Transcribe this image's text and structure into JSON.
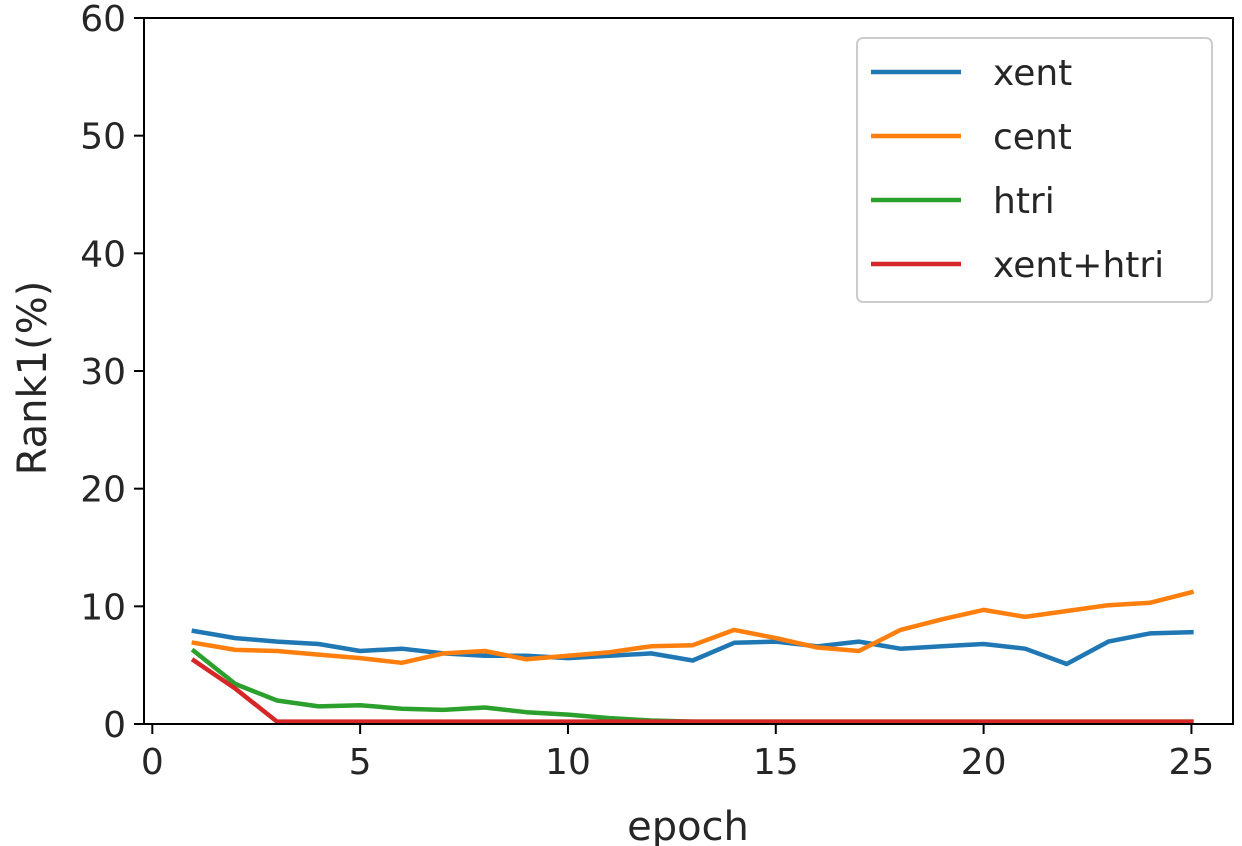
{
  "chart_data": {
    "type": "line",
    "xlabel": "epoch",
    "ylabel": "Rank1(%)",
    "xlim": [
      -0.2,
      26.0
    ],
    "ylim": [
      0,
      60
    ],
    "xticks": [
      0,
      5,
      10,
      15,
      20,
      25
    ],
    "yticks": [
      0,
      10,
      20,
      30,
      40,
      50,
      60
    ],
    "grid": false,
    "legend_position": "top-right",
    "x": [
      1,
      2,
      3,
      4,
      5,
      6,
      7,
      8,
      9,
      10,
      11,
      12,
      13,
      14,
      15,
      16,
      17,
      18,
      19,
      20,
      21,
      22,
      23,
      24,
      25
    ],
    "series": [
      {
        "name": "xent",
        "color": "#1f77b4",
        "values": [
          7.9,
          7.3,
          7.0,
          6.8,
          6.2,
          6.4,
          6.0,
          5.8,
          5.8,
          5.6,
          5.8,
          6.0,
          5.4,
          6.9,
          7.0,
          6.6,
          7.0,
          6.4,
          6.6,
          6.8,
          6.4,
          5.1,
          7.0,
          7.7,
          7.8
        ]
      },
      {
        "name": "cent",
        "color": "#ff7f0e",
        "values": [
          6.9,
          6.3,
          6.2,
          5.9,
          5.6,
          5.2,
          6.0,
          6.2,
          5.5,
          5.8,
          6.1,
          6.6,
          6.7,
          8.0,
          7.3,
          6.5,
          6.2,
          8.0,
          8.9,
          9.7,
          9.1,
          9.6,
          10.1,
          10.3,
          11.2
        ]
      },
      {
        "name": "htri",
        "color": "#2ca02c",
        "values": [
          6.2,
          3.4,
          2.0,
          1.5,
          1.6,
          1.3,
          1.2,
          1.4,
          1.0,
          0.8,
          0.5,
          0.3,
          0.2,
          0.2,
          0.2,
          0.2,
          0.2,
          0.2,
          0.2,
          0.2,
          0.2,
          0.2,
          0.2,
          0.2,
          0.2
        ]
      },
      {
        "name": "xent+htri",
        "color": "#d62728",
        "values": [
          5.4,
          3.0,
          0.2,
          0.2,
          0.2,
          0.2,
          0.2,
          0.2,
          0.2,
          0.2,
          0.2,
          0.2,
          0.2,
          0.2,
          0.2,
          0.2,
          0.2,
          0.2,
          0.2,
          0.2,
          0.2,
          0.2,
          0.2,
          0.2,
          0.2
        ]
      }
    ]
  }
}
